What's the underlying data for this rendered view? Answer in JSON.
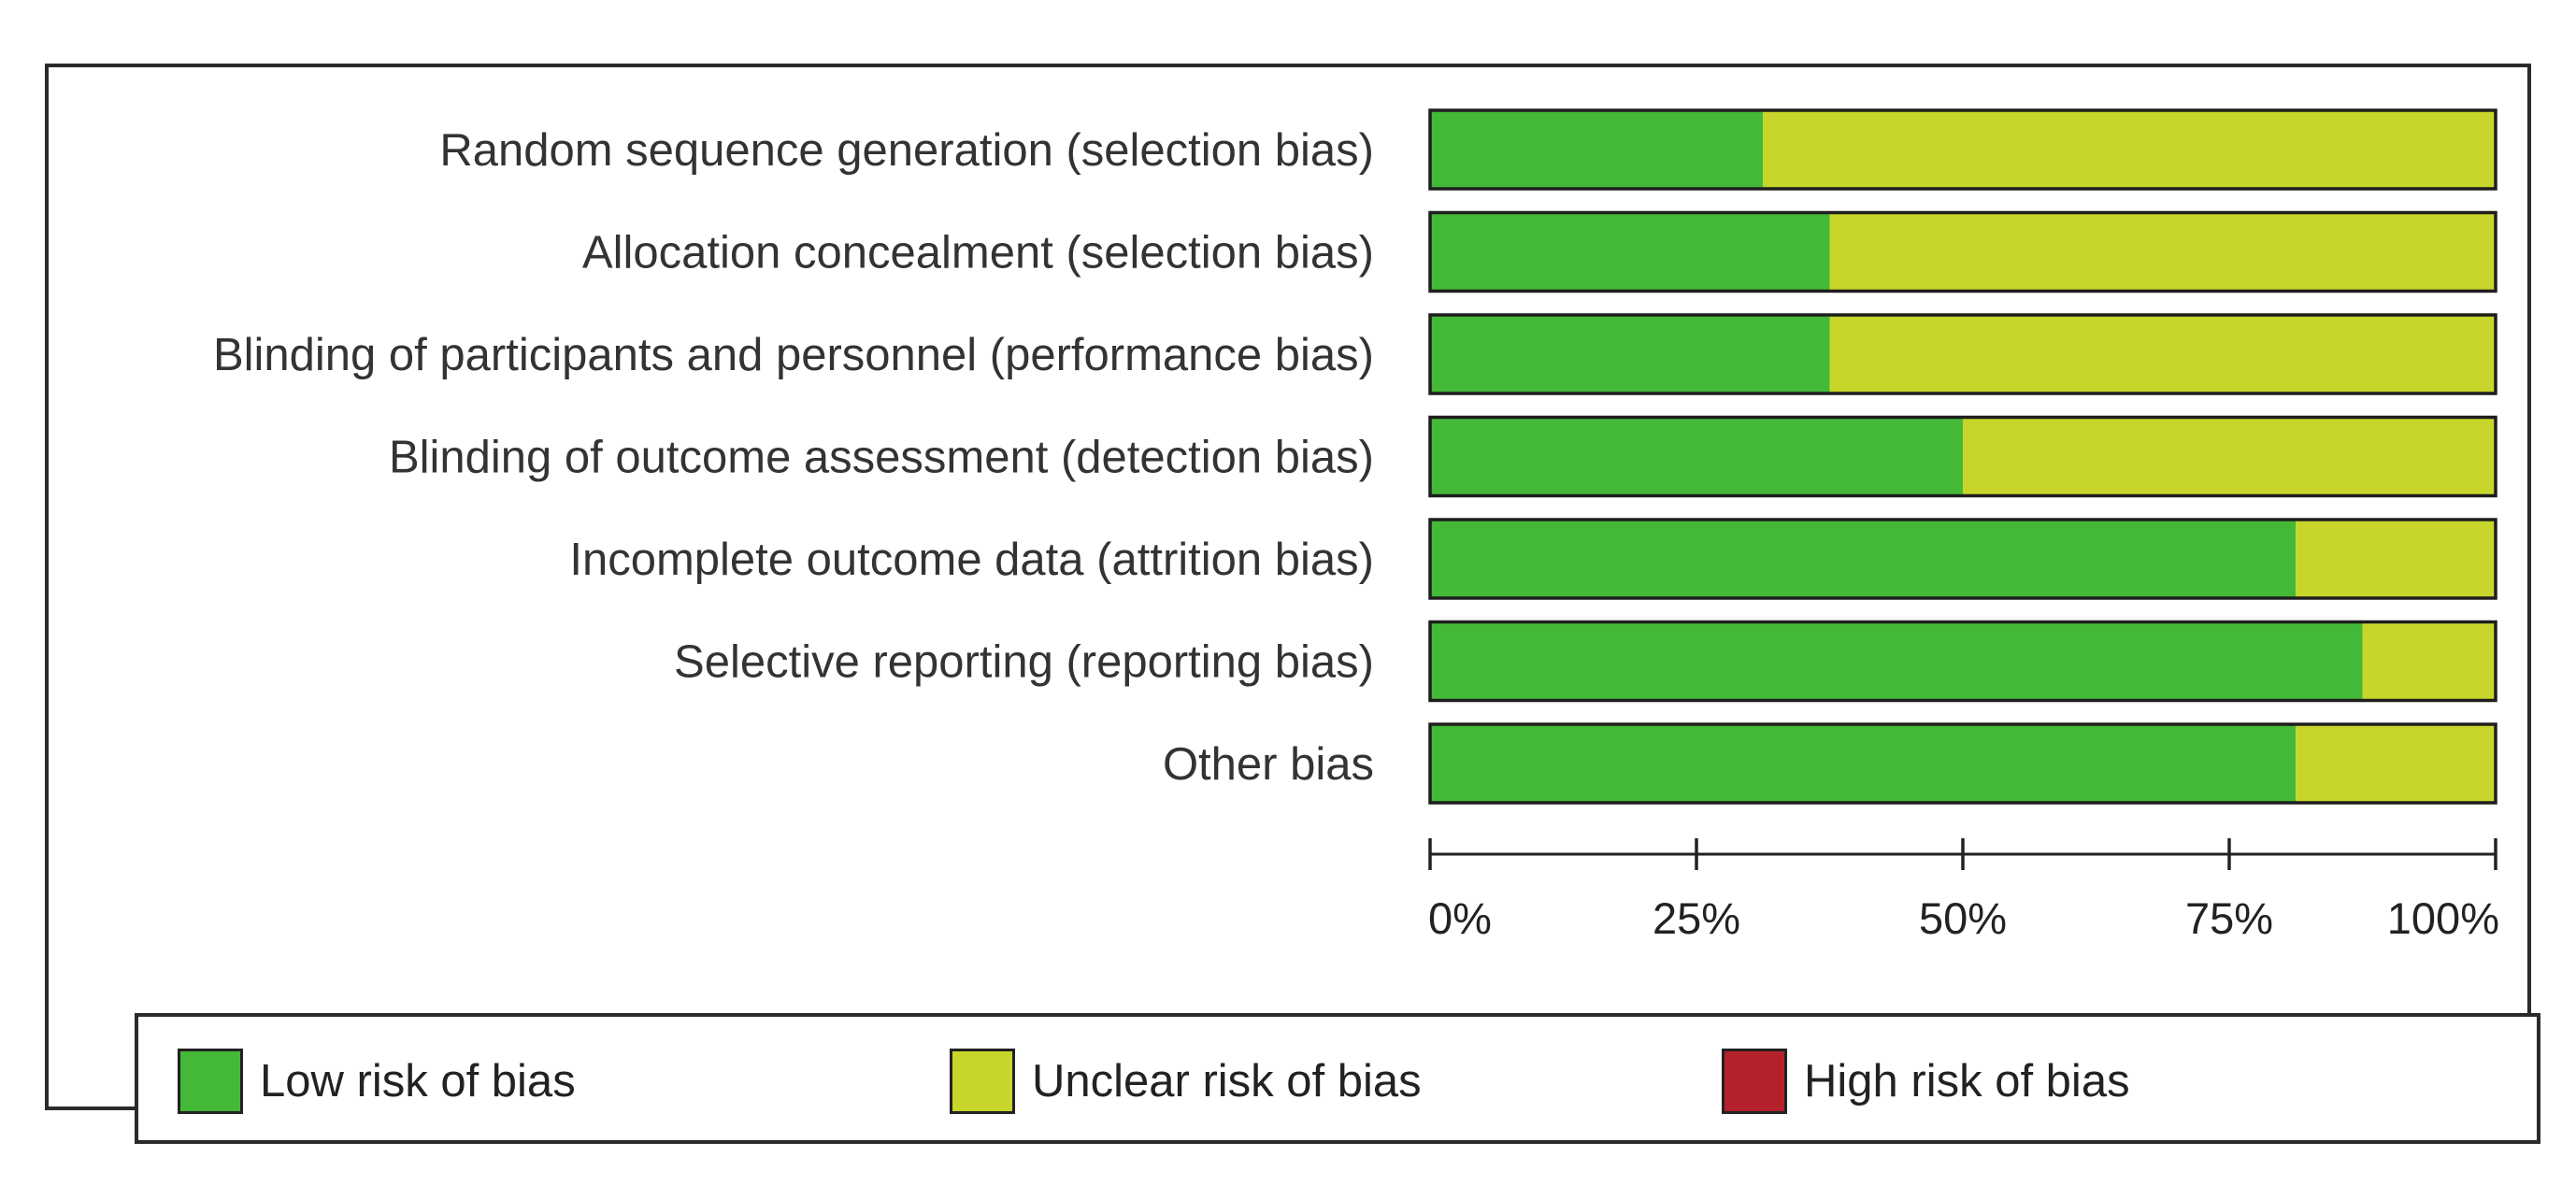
{
  "chart_data": {
    "type": "bar",
    "orientation": "horizontal",
    "stacked": true,
    "percent": true,
    "categories": [
      "Random sequence generation (selection bias)",
      "Allocation concealment (selection bias)",
      "Blinding of participants and personnel (performance bias)",
      "Blinding of outcome assessment (detection bias)",
      "Incomplete outcome data (attrition bias)",
      "Selective reporting (reporting bias)",
      "Other bias"
    ],
    "series": [
      {
        "name": "Low risk of bias",
        "color": "#44b938",
        "values": [
          31.25,
          37.5,
          37.5,
          50,
          81.25,
          87.5,
          81.25
        ]
      },
      {
        "name": "Unclear risk of bias",
        "color": "#c8d62b",
        "values": [
          68.75,
          62.5,
          62.5,
          50,
          18.75,
          12.5,
          18.75
        ]
      },
      {
        "name": "High risk of bias",
        "color": "#b5212b",
        "values": [
          0,
          0,
          0,
          0,
          0,
          0,
          0
        ]
      }
    ],
    "xticks": [
      "0%",
      "25%",
      "50%",
      "75%",
      "100%"
    ],
    "xlim": [
      0,
      100
    ],
    "title": "",
    "xlabel": "",
    "ylabel": "",
    "grid": false,
    "legend_position": "bottom"
  }
}
